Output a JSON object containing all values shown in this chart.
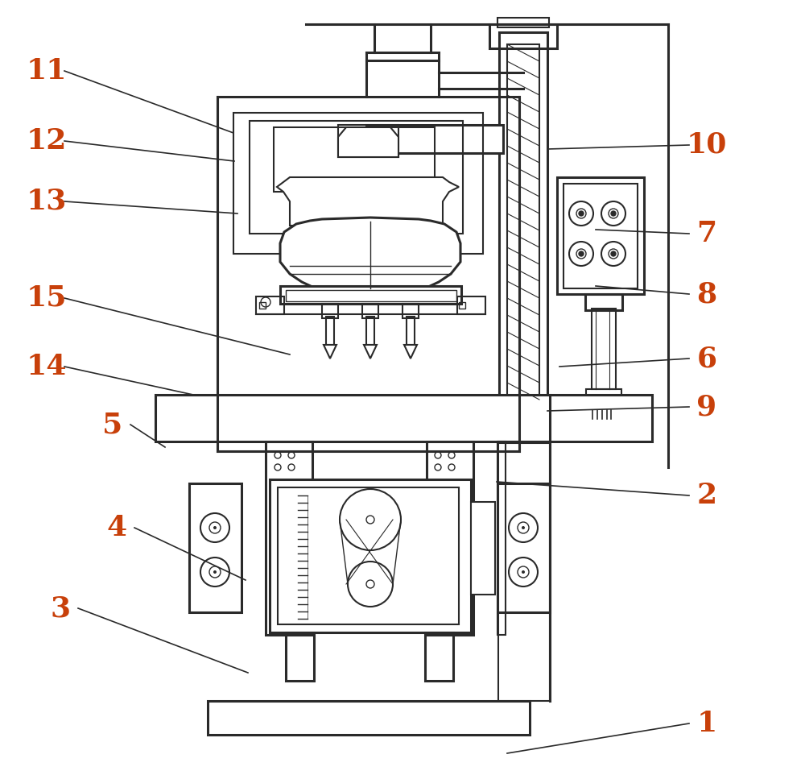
{
  "bg_color": "#ffffff",
  "lc": "#2a2a2a",
  "label_color": "#c8400a",
  "fig_width": 10.0,
  "fig_height": 9.57,
  "label_fontsize": 26,
  "label_data": [
    [
      "11",
      58,
      88,
      290,
      165
    ],
    [
      "12",
      58,
      175,
      291,
      200
    ],
    [
      "13",
      58,
      250,
      295,
      265
    ],
    [
      "15",
      58,
      370,
      360,
      440
    ],
    [
      "14",
      58,
      455,
      240,
      490
    ],
    [
      "5",
      140,
      527,
      205,
      555
    ],
    [
      "4",
      145,
      655,
      305,
      720
    ],
    [
      "3",
      75,
      755,
      308,
      835
    ],
    [
      "2",
      878,
      615,
      617,
      598
    ],
    [
      "1",
      878,
      898,
      630,
      935
    ],
    [
      "10",
      878,
      180,
      680,
      185
    ],
    [
      "7",
      878,
      290,
      740,
      285
    ],
    [
      "8",
      878,
      365,
      740,
      355
    ],
    [
      "6",
      878,
      445,
      695,
      455
    ],
    [
      "9",
      878,
      505,
      680,
      510
    ]
  ]
}
